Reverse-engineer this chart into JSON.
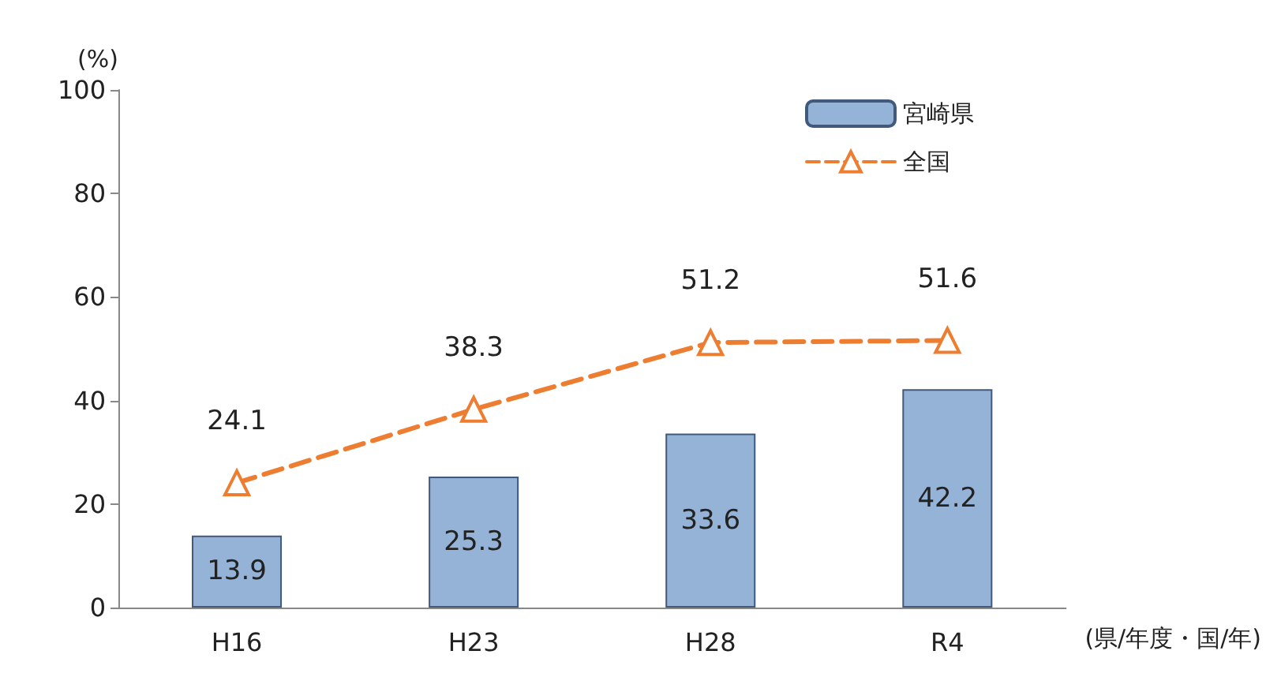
{
  "chart_data": {
    "type": "bar",
    "ylabel": "(%)",
    "xlabel": "(県/年度・国/年)",
    "categories": [
      "H16",
      "H23",
      "H28",
      "R4"
    ],
    "series": [
      {
        "name": "宮崎県",
        "color": "#95b3d7",
        "values": [
          13.9,
          25.3,
          33.6,
          42.2
        ]
      },
      {
        "name": "全国",
        "type": "line",
        "color": "#ed7d31",
        "values": [
          24.1,
          38.3,
          51.2,
          51.6
        ],
        "marker": "triangle",
        "line_style": "dashed"
      }
    ],
    "ylim": [
      0,
      100
    ],
    "yticks": [
      0,
      20,
      40,
      60,
      80,
      100
    ],
    "grid": false,
    "legend": "top right",
    "data_labels": true
  }
}
